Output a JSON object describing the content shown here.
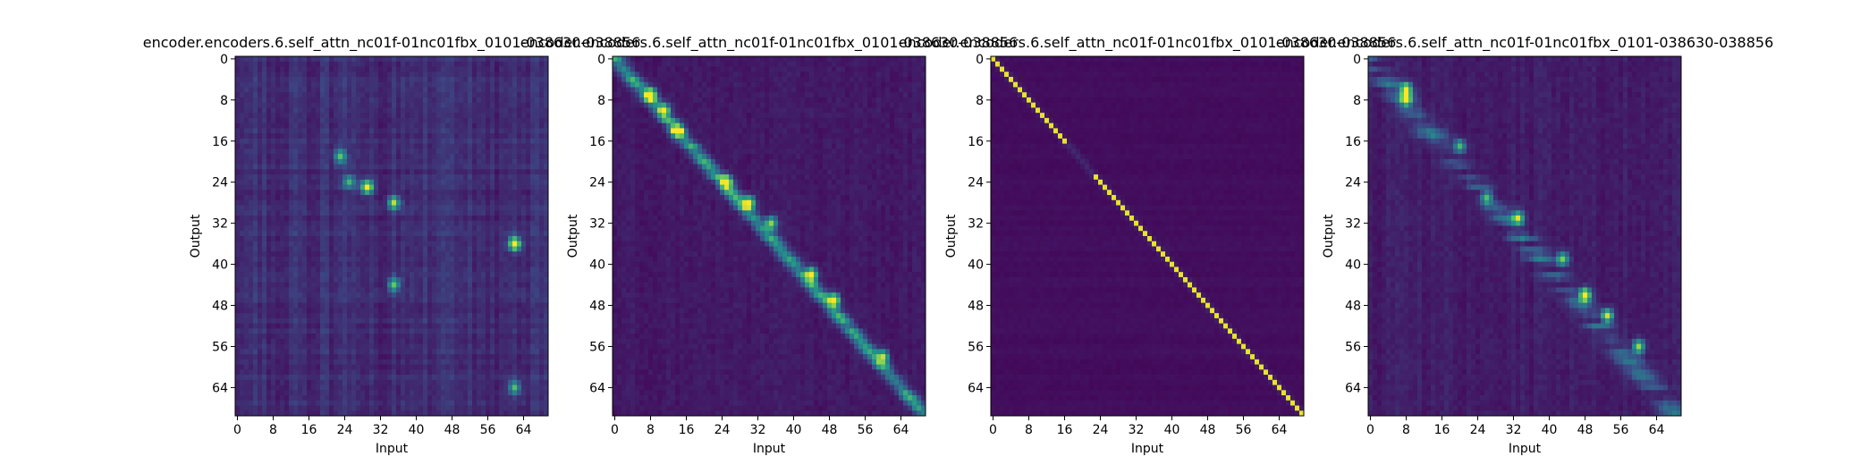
{
  "figure": {
    "background": "#ffffff",
    "colormap": "viridis",
    "colormap_stops": [
      "#440154",
      "#3b528b",
      "#21918c",
      "#5ec962",
      "#fde725"
    ]
  },
  "chart_data": [
    {
      "type": "heatmap",
      "title": "encoder.encoders.6.self_attn_nc01f-01nc01fbx_0101-038630-038856",
      "xlabel": "Input",
      "ylabel": "Output",
      "xlim": [
        0,
        70
      ],
      "ylim": [
        0,
        70
      ],
      "xticks": [
        0,
        8,
        16,
        24,
        32,
        40,
        48,
        56,
        64
      ],
      "yticks": [
        0,
        8,
        16,
        24,
        32,
        40,
        48,
        56,
        64
      ],
      "pattern": "diffuse",
      "hotspots": [
        [
          23,
          19,
          0.6
        ],
        [
          25,
          24,
          0.5
        ],
        [
          29,
          25,
          0.95
        ],
        [
          35,
          28,
          0.75
        ],
        [
          62,
          36,
          1.0
        ],
        [
          35,
          44,
          0.6
        ],
        [
          62,
          64,
          0.55
        ]
      ]
    },
    {
      "type": "heatmap",
      "title": "encoder.encoders.6.self_attn_nc01f-01nc01fbx_0101-038630-038856",
      "xlabel": "Input",
      "ylabel": "Output",
      "xlim": [
        0,
        70
      ],
      "ylim": [
        0,
        70
      ],
      "xticks": [
        0,
        8,
        16,
        24,
        32,
        40,
        48,
        56,
        64
      ],
      "yticks": [
        0,
        8,
        16,
        24,
        32,
        40,
        48,
        56,
        64
      ],
      "pattern": "near-diagonal",
      "hotspots": [
        [
          8,
          7,
          1.0
        ],
        [
          11,
          10,
          0.8
        ],
        [
          14,
          14,
          0.9
        ],
        [
          25,
          24,
          0.95
        ],
        [
          30,
          28,
          0.85
        ],
        [
          35,
          32,
          0.7
        ],
        [
          44,
          42,
          0.9
        ],
        [
          49,
          47,
          0.95
        ],
        [
          60,
          58,
          0.7
        ]
      ]
    },
    {
      "type": "heatmap",
      "title": "encoder.encoders.6.self_attn_nc01f-01nc01fbx_0101-038630-038856",
      "xlabel": "Input",
      "ylabel": "Output",
      "xlim": [
        0,
        70
      ],
      "ylim": [
        0,
        70
      ],
      "xticks": [
        0,
        8,
        16,
        24,
        32,
        40,
        48,
        56,
        64
      ],
      "yticks": [
        0,
        8,
        16,
        24,
        32,
        40,
        48,
        56,
        64
      ],
      "pattern": "diagonal",
      "hotspots": []
    },
    {
      "type": "heatmap",
      "title": "encoder.encoders.6.self_attn_nc01f-01nc01fbx_0101-038630-038856",
      "xlabel": "Input",
      "ylabel": "Output",
      "xlim": [
        0,
        70
      ],
      "ylim": [
        0,
        70
      ],
      "xticks": [
        0,
        8,
        16,
        24,
        32,
        40,
        48,
        56,
        64
      ],
      "yticks": [
        0,
        8,
        16,
        24,
        32,
        40,
        48,
        56,
        64
      ],
      "pattern": "scattered-diagonal",
      "hotspots": [
        [
          8,
          6,
          0.9
        ],
        [
          8,
          8,
          0.7
        ],
        [
          20,
          17,
          0.6
        ],
        [
          26,
          27,
          0.6
        ],
        [
          33,
          31,
          0.75
        ],
        [
          43,
          39,
          0.7
        ],
        [
          48,
          46,
          1.0
        ],
        [
          53,
          50,
          0.85
        ],
        [
          60,
          56,
          0.75
        ]
      ]
    }
  ]
}
